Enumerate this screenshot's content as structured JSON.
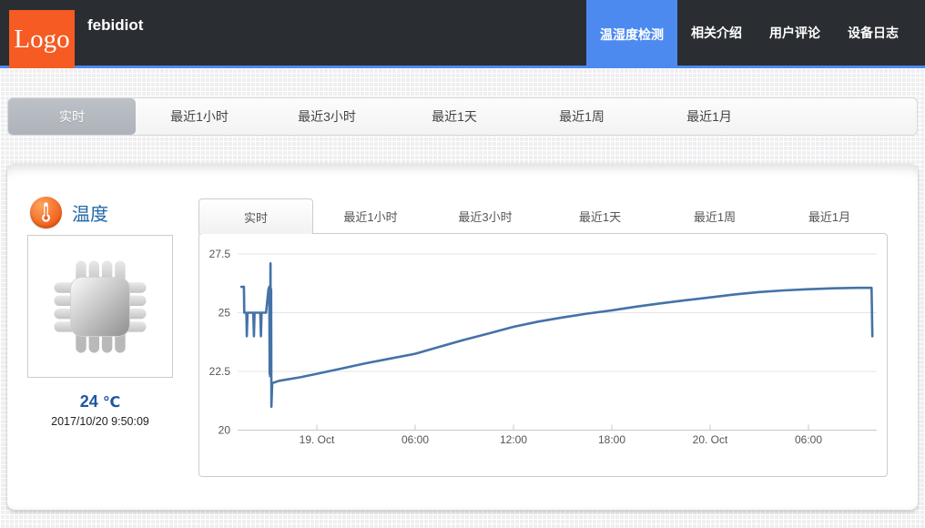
{
  "colors": {
    "accent_orange": "#f55b22",
    "nav_active_blue": "#4d8af0",
    "header_dark": "#2a2d32",
    "series_line": "#4572a7",
    "sensor_title_blue": "#2068a8",
    "value_blue": "#1d55a3",
    "active_range_tab_gray": "#b4b9c0"
  },
  "header": {
    "logo_text": "Logo",
    "site_title": "febidiot",
    "nav": [
      {
        "label": "温湿度检测",
        "active": true
      },
      {
        "label": "相关介绍",
        "active": false
      },
      {
        "label": "用户评论",
        "active": false
      },
      {
        "label": "设备日志",
        "active": false
      }
    ]
  },
  "range_tabs": [
    {
      "label": "实时",
      "active": true
    },
    {
      "label": "最近1小时",
      "active": false
    },
    {
      "label": "最近3小时",
      "active": false
    },
    {
      "label": "最近1天",
      "active": false
    },
    {
      "label": "最近1周",
      "active": false
    },
    {
      "label": "最近1月",
      "active": false
    }
  ],
  "sensor": {
    "title": "温度",
    "icon": "thermometer-icon",
    "image": "cpu-chip",
    "value": "24",
    "unit": "℃",
    "timestamp": "2017/10/20 9:50:09"
  },
  "chart_tabs": [
    {
      "label": "实时",
      "active": true
    },
    {
      "label": "最近1小时",
      "active": false
    },
    {
      "label": "最近3小时",
      "active": false
    },
    {
      "label": "最近1天",
      "active": false
    },
    {
      "label": "最近1周",
      "active": false
    },
    {
      "label": "最近1月",
      "active": false
    }
  ],
  "chart_data": {
    "type": "line",
    "title": "",
    "legend": "none",
    "grid": "horizontal",
    "x_axis": {
      "type": "datetime",
      "note": "hours relative to 2017-10-19 00:00",
      "tick_positions_hours": [
        0,
        6,
        12,
        18,
        24,
        30
      ],
      "tick_labels": [
        "19. Oct",
        "06:00",
        "12:00",
        "18:00",
        "20. Oct",
        "06:00"
      ],
      "range_hours": [
        -4.83,
        34.17
      ]
    },
    "y_axis": {
      "ticks": [
        20,
        22.5,
        25,
        27.5
      ],
      "tick_labels": [
        "20",
        "22.5",
        "25",
        "27.5"
      ],
      "range": [
        20,
        27.97
      ],
      "unit": "°C"
    },
    "series": [
      {
        "name": "温度",
        "color": "#4572a7",
        "points": [
          [
            -4.6,
            26.1
          ],
          [
            -4.45,
            26.1
          ],
          [
            -4.43,
            25.0
          ],
          [
            -4.3,
            25.0
          ],
          [
            -4.27,
            24.0
          ],
          [
            -4.23,
            25.0
          ],
          [
            -3.88,
            25.0
          ],
          [
            -3.84,
            24.0
          ],
          [
            -3.8,
            25.0
          ],
          [
            -3.45,
            25.0
          ],
          [
            -3.41,
            24.0
          ],
          [
            -3.37,
            25.0
          ],
          [
            -3.1,
            25.0
          ],
          [
            -2.95,
            26.0
          ],
          [
            -2.9,
            26.1
          ],
          [
            -2.88,
            22.4
          ],
          [
            -2.87,
            26.1
          ],
          [
            -2.85,
            22.3
          ],
          [
            -2.83,
            27.1
          ],
          [
            -2.81,
            22.3
          ],
          [
            -2.79,
            26.0
          ],
          [
            -2.77,
            21.0
          ],
          [
            -2.72,
            22.0
          ],
          [
            -2.3,
            22.1
          ],
          [
            -1.0,
            22.25
          ],
          [
            0,
            22.4
          ],
          [
            1.5,
            22.62
          ],
          [
            3,
            22.85
          ],
          [
            4.5,
            23.05
          ],
          [
            6,
            23.25
          ],
          [
            7.5,
            23.55
          ],
          [
            9,
            23.85
          ],
          [
            10.5,
            24.12
          ],
          [
            12,
            24.4
          ],
          [
            13.5,
            24.62
          ],
          [
            15,
            24.8
          ],
          [
            16.5,
            24.96
          ],
          [
            18,
            25.1
          ],
          [
            19.5,
            25.26
          ],
          [
            21,
            25.4
          ],
          [
            22.5,
            25.53
          ],
          [
            24,
            25.65
          ],
          [
            25.5,
            25.78
          ],
          [
            27,
            25.88
          ],
          [
            28.5,
            25.95
          ],
          [
            30,
            26.0
          ],
          [
            31.5,
            26.04
          ],
          [
            33,
            26.06
          ],
          [
            33.85,
            26.06
          ],
          [
            33.9,
            24.0
          ]
        ]
      }
    ]
  }
}
